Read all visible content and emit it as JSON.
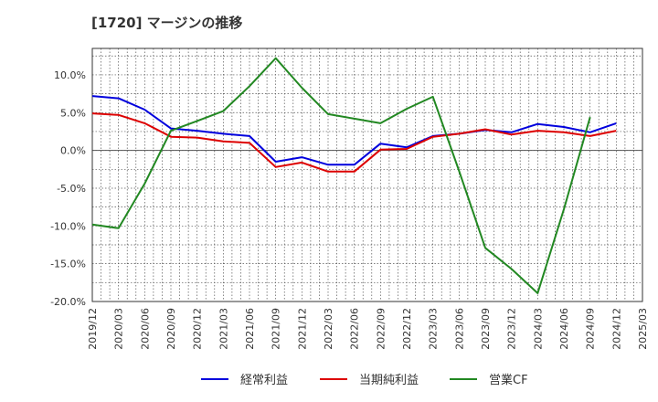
{
  "title": "[1720]  マージンの推移",
  "chart_data": {
    "type": "line",
    "title": "[1720]  マージンの推移",
    "xlabel": "",
    "ylabel": "",
    "ylim": [
      -20,
      13.5
    ],
    "grid": true,
    "legend_placement": "bottom",
    "y_ticks": [
      10,
      5,
      0,
      -5,
      -10,
      -15,
      -20
    ],
    "y_tick_labels": [
      "10.0%",
      "5.0%",
      "0.0%",
      "-5.0%",
      "-10.0%",
      "-15.0%",
      "-20.0%"
    ],
    "x": [
      "2019/12",
      "2020/03",
      "2020/06",
      "2020/09",
      "2020/12",
      "2021/03",
      "2021/06",
      "2021/09",
      "2021/12",
      "2022/03",
      "2022/06",
      "2022/09",
      "2022/12",
      "2023/03",
      "2023/06",
      "2023/09",
      "2023/12",
      "2024/03",
      "2024/06",
      "2024/09",
      "2024/12",
      "2025/03"
    ],
    "series": [
      {
        "name": "経常利益",
        "color": "#0000dd",
        "values": [
          7.2,
          6.9,
          5.4,
          2.9,
          2.6,
          2.2,
          1.9,
          -1.5,
          -0.9,
          -1.9,
          -1.9,
          0.9,
          0.4,
          1.9,
          2.2,
          2.7,
          2.4,
          3.5,
          3.1,
          2.4,
          3.6,
          null
        ]
      },
      {
        "name": "当期純利益",
        "color": "#dd0000",
        "values": [
          4.9,
          4.7,
          3.6,
          1.8,
          1.7,
          1.2,
          1.0,
          -2.2,
          -1.6,
          -2.8,
          -2.8,
          0.1,
          0.2,
          1.8,
          2.2,
          2.8,
          2.1,
          2.6,
          2.4,
          1.9,
          2.6,
          null
        ]
      },
      {
        "name": "営業CF",
        "color": "#228822",
        "values": [
          -9.8,
          -10.3,
          -4.4,
          2.6,
          3.9,
          5.2,
          8.5,
          12.2,
          8.3,
          4.8,
          4.2,
          3.6,
          5.5,
          7.1,
          -2.7,
          -12.9,
          -15.7,
          -18.9,
          -7.8,
          4.4,
          null,
          null
        ]
      }
    ]
  }
}
